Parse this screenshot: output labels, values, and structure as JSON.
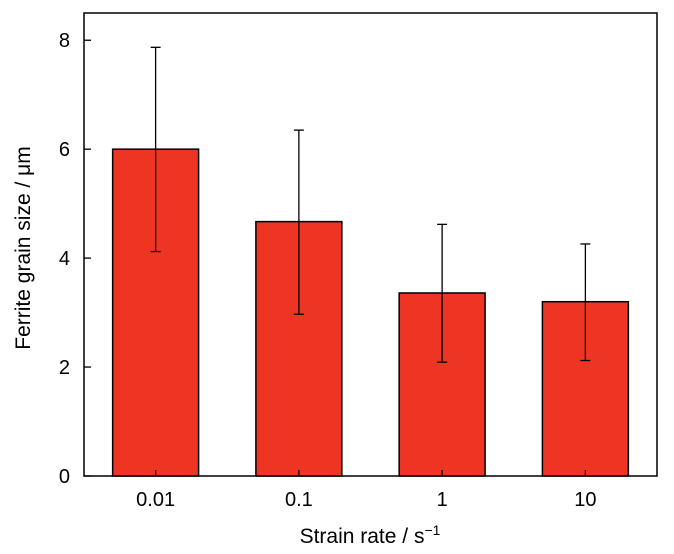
{
  "chart_data": {
    "type": "bar",
    "categories": [
      "0.01",
      "0.1",
      "1",
      "10"
    ],
    "values": [
      6.0,
      4.67,
      3.36,
      3.2
    ],
    "error_upper": [
      7.87,
      6.35,
      4.62,
      4.26
    ],
    "error_lower": [
      4.12,
      2.97,
      2.09,
      2.12
    ],
    "xlabel": "Strain rate / s",
    "xlabel_superscript": "−1",
    "ylabel": "Ferrite grain size / μm",
    "ylim": [
      0,
      8.5
    ],
    "yticks": [
      0,
      2,
      4,
      6,
      8
    ],
    "grid": false,
    "bar_color": "#ee3524"
  }
}
